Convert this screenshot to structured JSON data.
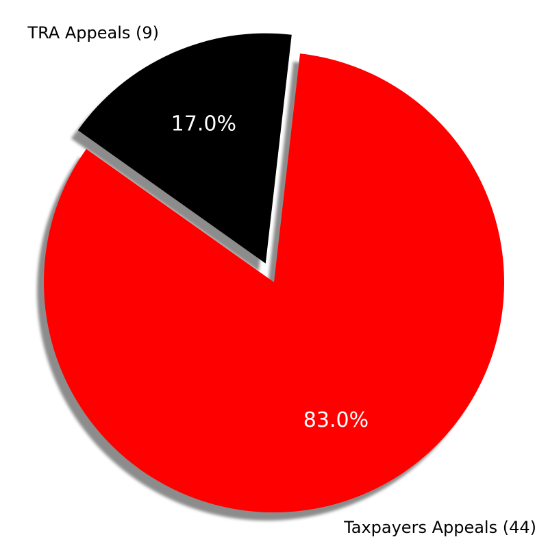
{
  "chart_data": {
    "type": "pie",
    "title": "",
    "slices": [
      {
        "label": "TRA Appeals (9)",
        "value": 9,
        "percent_label": "17.0%",
        "color": "#000000",
        "exploded": true
      },
      {
        "label": "Taxpayers Appeals (44)",
        "value": 44,
        "percent_label": "83.0%",
        "color": "#ff0000",
        "exploded": false
      }
    ],
    "shadow": true,
    "shadow_color": "#808080"
  }
}
